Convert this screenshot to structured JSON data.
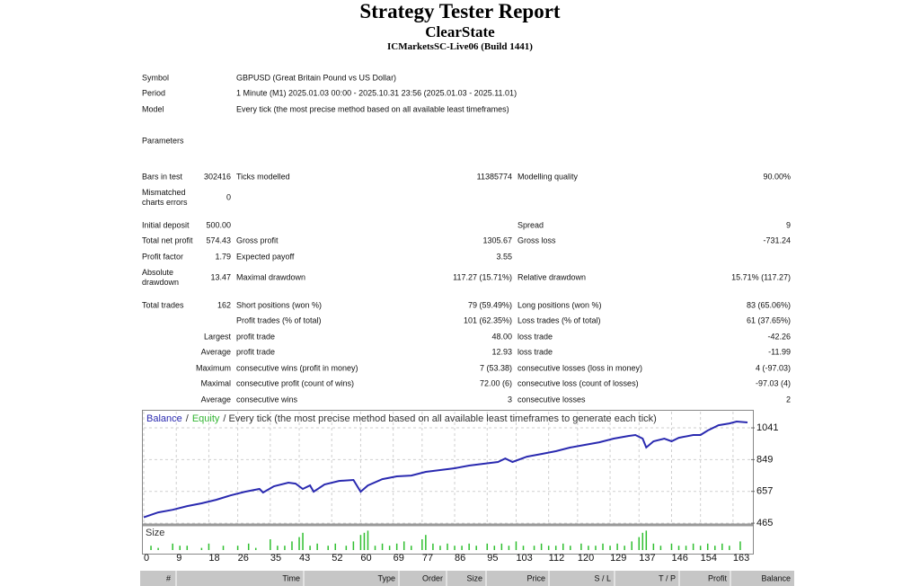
{
  "header": {
    "title": "Strategy Tester Report",
    "expert": "ClearState",
    "server": "ICMarketsSC-Live06 (Build 1441)"
  },
  "info": [
    [
      "Symbol",
      "GBPUSD (Great Britain Pound vs US Dollar)"
    ],
    [
      "Period",
      "1 Minute (M1) 2025.01.03 00:00 - 2025.10.31 23:56 (2025.01.03 - 2025.11.01)"
    ],
    [
      "Model",
      "Every tick (the most precise method based on all available least timeframes)"
    ]
  ],
  "parameters": "Parameters",
  "stats": [
    [
      "Bars in test",
      "302416",
      "Ticks modelled",
      "11385774",
      "Modelling quality",
      "90.00%"
    ],
    [
      "Mismatched charts errors",
      "0",
      null,
      null,
      null,
      null
    ],
    [
      "Initial deposit",
      "500.00",
      null,
      null,
      "Spread",
      "9"
    ],
    [
      "Total net profit",
      "574.43",
      "Gross profit",
      "1305.67",
      "Gross loss",
      "-731.24"
    ],
    [
      "Profit factor",
      "1.79",
      "Expected payoff",
      "3.55",
      null,
      null
    ],
    [
      "Absolute drawdown",
      "13.47",
      "Maximal drawdown",
      "117.27 (15.71%)",
      "Relative drawdown",
      "15.71% (117.27)"
    ],
    [
      "Total trades",
      "162",
      "Short positions (won %)",
      "79 (59.49%)",
      "Long positions (won %)",
      "83 (65.06%)"
    ],
    [
      null,
      null,
      "Profit trades (% of total)",
      "101 (62.35%)",
      "Loss trades (% of total)",
      "61 (37.65%)"
    ],
    [
      null,
      "Largest",
      "profit trade",
      "48.00",
      "loss trade",
      "-42.26"
    ],
    [
      null,
      "Average",
      "profit trade",
      "12.93",
      "loss trade",
      "-11.99"
    ],
    [
      null,
      "Maximum",
      "consecutive wins (profit in money)",
      "7 (53.38)",
      "consecutive losses (loss in money)",
      "4 (-97.03)"
    ],
    [
      null,
      "Maximal",
      "consecutive profit (count of wins)",
      "72.00 (6)",
      "consecutive loss (count of losses)",
      "-97.03 (4)"
    ],
    [
      null,
      "Average",
      "consecutive wins",
      "3",
      "consecutive losses",
      "2"
    ]
  ],
  "chart_data": {
    "type": "line",
    "legend_separator": "/",
    "equity_label": "Equity",
    "equity_color": "#33b533",
    "model_label": "/ Every tick (the most precise method based on all available least timeframes to generate each tick)",
    "series": [
      {
        "name": "Balance",
        "color": "#2a2ab0",
        "x": [
          0,
          4,
          8,
          12,
          16,
          20,
          24,
          28,
          32,
          33,
          36,
          40,
          42,
          44,
          46,
          47,
          50,
          54,
          58,
          60,
          62,
          66,
          70,
          74,
          78,
          82,
          86,
          90,
          94,
          98,
          100,
          102,
          106,
          110,
          114,
          118,
          122,
          126,
          130,
          134,
          136,
          138,
          139,
          141,
          144,
          146,
          148,
          152,
          154,
          156,
          159,
          162,
          164,
          167
        ],
        "values": [
          500,
          530,
          546,
          568,
          585,
          606,
          633,
          655,
          672,
          650,
          688,
          710,
          704,
          672,
          693,
          655,
          699,
          720,
          726,
          655,
          693,
          731,
          748,
          753,
          775,
          786,
          797,
          813,
          824,
          835,
          856,
          835,
          867,
          883,
          900,
          922,
          938,
          954,
          976,
          992,
          998,
          976,
          922,
          960,
          976,
          960,
          981,
          998,
          998,
          1025,
          1057,
          1068,
          1079,
          1074
        ]
      }
    ],
    "xlim": [
      0,
      168
    ],
    "xticks": [
      0,
      9,
      18,
      26,
      35,
      43,
      52,
      60,
      69,
      77,
      86,
      95,
      103,
      112,
      120,
      129,
      137,
      146,
      154,
      163
    ],
    "ylim": [
      460,
      1139
    ],
    "yticks": [
      465,
      657,
      849,
      1041
    ],
    "grid": true
  },
  "size_chart": {
    "type": "bar",
    "title": "Size",
    "color": "#2fbf2f",
    "ylim": [
      0,
      10
    ],
    "x": [
      2,
      4,
      8,
      10,
      12,
      16,
      18,
      22,
      26,
      29,
      31,
      35,
      37,
      39,
      41,
      43,
      44,
      46,
      48,
      51,
      53,
      56,
      58,
      60,
      61,
      62,
      64,
      66,
      68,
      70,
      72,
      74,
      77,
      78,
      80,
      82,
      84,
      86,
      88,
      90,
      92,
      95,
      97,
      99,
      101,
      103,
      105,
      108,
      110,
      112,
      114,
      116,
      118,
      121,
      123,
      125,
      127,
      129,
      131,
      133,
      135,
      137,
      138,
      139,
      141,
      143,
      146,
      148,
      150,
      152,
      154,
      156,
      158,
      160,
      162,
      165
    ],
    "values": [
      2,
      1,
      3,
      2,
      2,
      1,
      3,
      2,
      2,
      3,
      1,
      5,
      2,
      2,
      4,
      6,
      8,
      2,
      3,
      2,
      3,
      2,
      4,
      7,
      8,
      9,
      2,
      3,
      2,
      3,
      4,
      2,
      5,
      7,
      3,
      2,
      3,
      2,
      2,
      3,
      2,
      3,
      2,
      3,
      2,
      4,
      2,
      2,
      3,
      2,
      2,
      3,
      2,
      3,
      2,
      2,
      3,
      2,
      3,
      2,
      4,
      6,
      8,
      9,
      3,
      2,
      3,
      2,
      2,
      3,
      2,
      3,
      2,
      3,
      2,
      4
    ]
  },
  "trades_table": {
    "columns": [
      "#",
      "Time",
      "Type",
      "Order",
      "Size",
      "Price",
      "S / L",
      "T / P",
      "Profit",
      "Balance"
    ]
  }
}
